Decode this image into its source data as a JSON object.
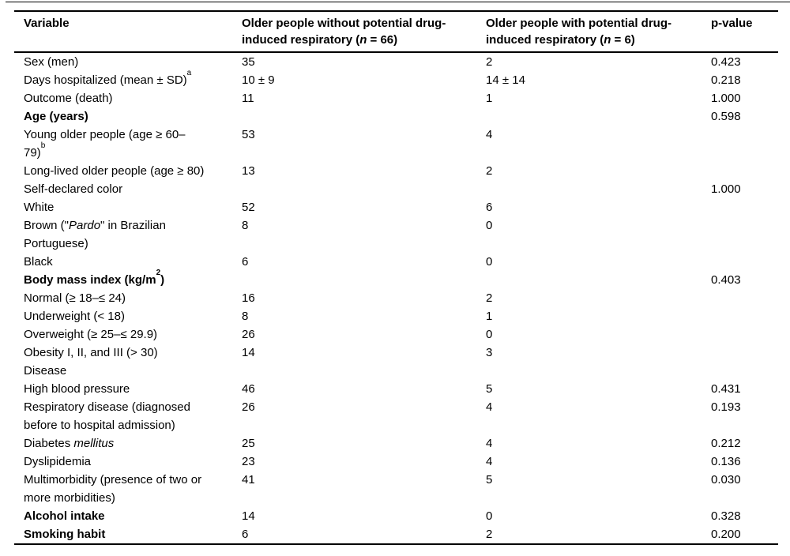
{
  "page": {
    "background_color": "#ffffff",
    "text_color": "#000000"
  },
  "table": {
    "header": {
      "col1": "Variable",
      "col2": {
        "pre": "Older people without potential drug-induced respiratory (",
        "n": "n",
        "post": " = 66)"
      },
      "col3": {
        "pre": "Older people with potential drug-induced respiratory (",
        "n": "n",
        "post": " = 6)"
      },
      "col4": "p-value"
    },
    "rows": [
      {
        "variable": "Sex (men)",
        "without": "35",
        "with": "2",
        "p": "0.423"
      },
      {
        "variable": "Days hospitalized (mean ± SD)",
        "sup": "a",
        "without": "10 ± 9",
        "with": "14 ± 14",
        "p": "0.218"
      },
      {
        "variable": "Outcome (death)",
        "without": "11",
        "with": "1",
        "p": "1.000"
      },
      {
        "variable": "Age (years)",
        "without": "",
        "with": "",
        "p": "0.598"
      },
      {
        "variable": "Young older people (age ≥ 60–79)",
        "sup": "b",
        "without": "53",
        "with": "4",
        "p": ""
      },
      {
        "variable": "Long-lived older people (age ≥ 80)",
        "without": "13",
        "with": "2",
        "p": ""
      },
      {
        "variable": "Self-declared color",
        "without": "",
        "with": "",
        "p": "1.000"
      },
      {
        "variable": "White",
        "without": "52",
        "with": "6",
        "p": ""
      },
      {
        "pre": "Brown (\"",
        "it": "Pardo",
        "post": "\" in Brazilian Portuguese)",
        "without": "8",
        "with": "0",
        "p": ""
      },
      {
        "variable": "Black",
        "without": "6",
        "with": "0",
        "p": ""
      },
      {
        "variable": "Body mass index (kg/m",
        "sup": "2",
        "post": ")",
        "without": "",
        "with": "",
        "p": "0.403"
      },
      {
        "variable": "Normal (≥ 18–≤ 24)",
        "without": "16",
        "with": "2",
        "p": ""
      },
      {
        "variable": "Underweight (< 18)",
        "without": "8",
        "with": "1",
        "p": ""
      },
      {
        "variable": "Overweight (≥ 25–≤ 29.9)",
        "without": "26",
        "with": "0",
        "p": ""
      },
      {
        "variable": "Obesity I, II, and III (> 30)",
        "without": "14",
        "with": "3",
        "p": ""
      },
      {
        "variable": "Disease",
        "without": "",
        "with": "",
        "p": ""
      },
      {
        "variable": "High blood pressure",
        "without": "46",
        "with": "5",
        "p": "0.431"
      },
      {
        "variable": "Respiratory disease (diagnosed before to hospital admission)",
        "without": "26",
        "with": "4",
        "p": "0.193"
      },
      {
        "pre": "Diabetes ",
        "it": "mellitus",
        "post": "",
        "without": "25",
        "with": "4",
        "p": "0.212"
      },
      {
        "variable": "Dyslipidemia",
        "without": "23",
        "with": "4",
        "p": "0.136"
      },
      {
        "variable": "Multimorbidity (presence of two or more morbidities)",
        "without": "41",
        "with": "5",
        "p": "0.030"
      },
      {
        "variable": "Alcohol intake",
        "without": "14",
        "with": "0",
        "p": "0.328"
      },
      {
        "variable": "Smoking habit",
        "without": "6",
        "with": "2",
        "p": "0.200"
      }
    ]
  }
}
